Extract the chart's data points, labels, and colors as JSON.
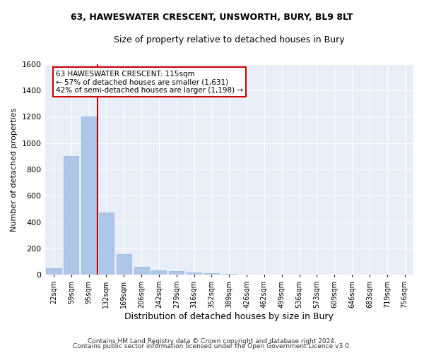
{
  "title1": "63, HAWESWATER CRESCENT, UNSWORTH, BURY, BL9 8LT",
  "title2": "Size of property relative to detached houses in Bury",
  "xlabel": "Distribution of detached houses by size in Bury",
  "ylabel": "Number of detached properties",
  "categories": [
    "22sqm",
    "59sqm",
    "95sqm",
    "132sqm",
    "169sqm",
    "206sqm",
    "242sqm",
    "279sqm",
    "316sqm",
    "352sqm",
    "389sqm",
    "426sqm",
    "462sqm",
    "499sqm",
    "536sqm",
    "573sqm",
    "609sqm",
    "646sqm",
    "683sqm",
    "719sqm",
    "756sqm"
  ],
  "values": [
    50,
    900,
    1200,
    475,
    155,
    60,
    35,
    27,
    17,
    11,
    5,
    3,
    3,
    2,
    1,
    0,
    0,
    0,
    0,
    0,
    0
  ],
  "bar_color": "#aec6e8",
  "bar_edge_color": "#8db4d8",
  "red_line_x": 2.5,
  "annotation_text": "63 HAWESWATER CRESCENT: 115sqm\n← 57% of detached houses are smaller (1,631)\n42% of semi-detached houses are larger (1,198) →",
  "annotation_box_color": "#ffffff",
  "annotation_box_edge": "#cc0000",
  "ylim": [
    0,
    1600
  ],
  "yticks": [
    0,
    200,
    400,
    600,
    800,
    1000,
    1200,
    1400,
    1600
  ],
  "background_color": "#e8eef8",
  "grid_color": "#ffffff",
  "figure_bg": "#ffffff",
  "footer1": "Contains HM Land Registry data © Crown copyright and database right 2024.",
  "footer2": "Contains public sector information licensed under the Open Government Licence v3.0."
}
